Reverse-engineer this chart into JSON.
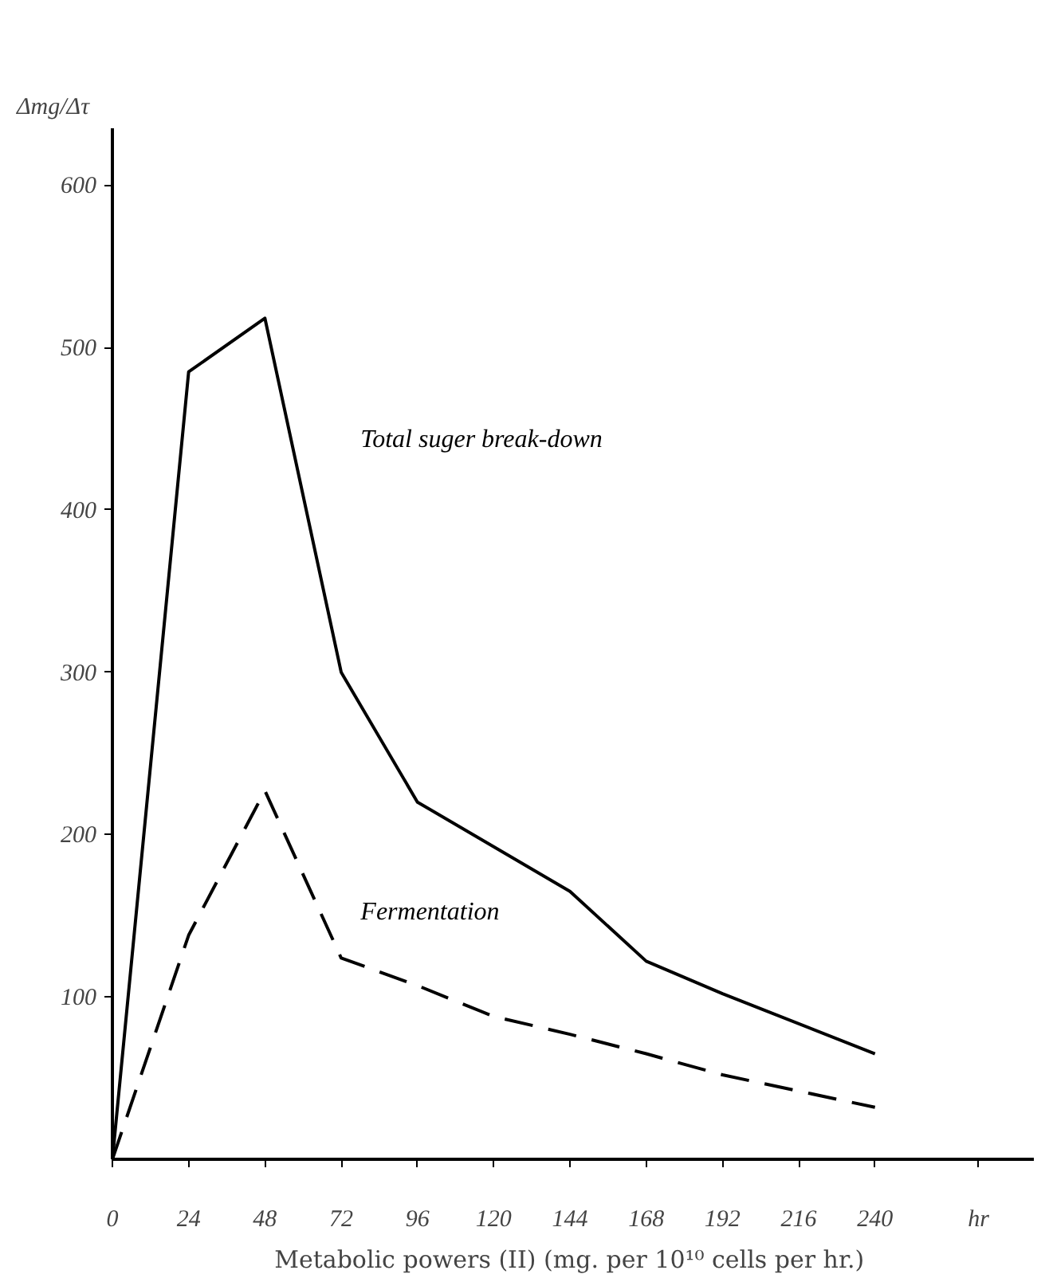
{
  "chart_data": {
    "type": "line",
    "xlabel": "Metabolic powers (II)  (mg. per 10¹⁰ cells per hr.)",
    "ylabel": "Δmg/Δτ",
    "xlim": [
      0,
      290
    ],
    "ylim": [
      0,
      635
    ],
    "xticks": [
      0,
      24,
      48,
      72,
      96,
      120,
      144,
      168,
      192,
      216,
      240
    ],
    "yticks": [
      100,
      200,
      300,
      400,
      500,
      600
    ],
    "grid": false,
    "marker": "none",
    "annotations": [
      "hr"
    ],
    "series": [
      {
        "name": "Total suger break-down",
        "color": "#000000",
        "line_style": "solid",
        "x": [
          0,
          24,
          48,
          72,
          96,
          144,
          168,
          192,
          240
        ],
        "values": [
          0,
          485,
          518,
          300,
          220,
          165,
          122,
          102,
          65
        ]
      },
      {
        "name": "Fermentation",
        "color": "#000000",
        "line_style": "dashed",
        "x": [
          0,
          24,
          48,
          72,
          96,
          120,
          144,
          168,
          192,
          216,
          240
        ],
        "values": [
          0,
          138,
          227,
          124,
          107,
          88,
          77,
          65,
          52,
          42,
          32
        ]
      }
    ]
  }
}
